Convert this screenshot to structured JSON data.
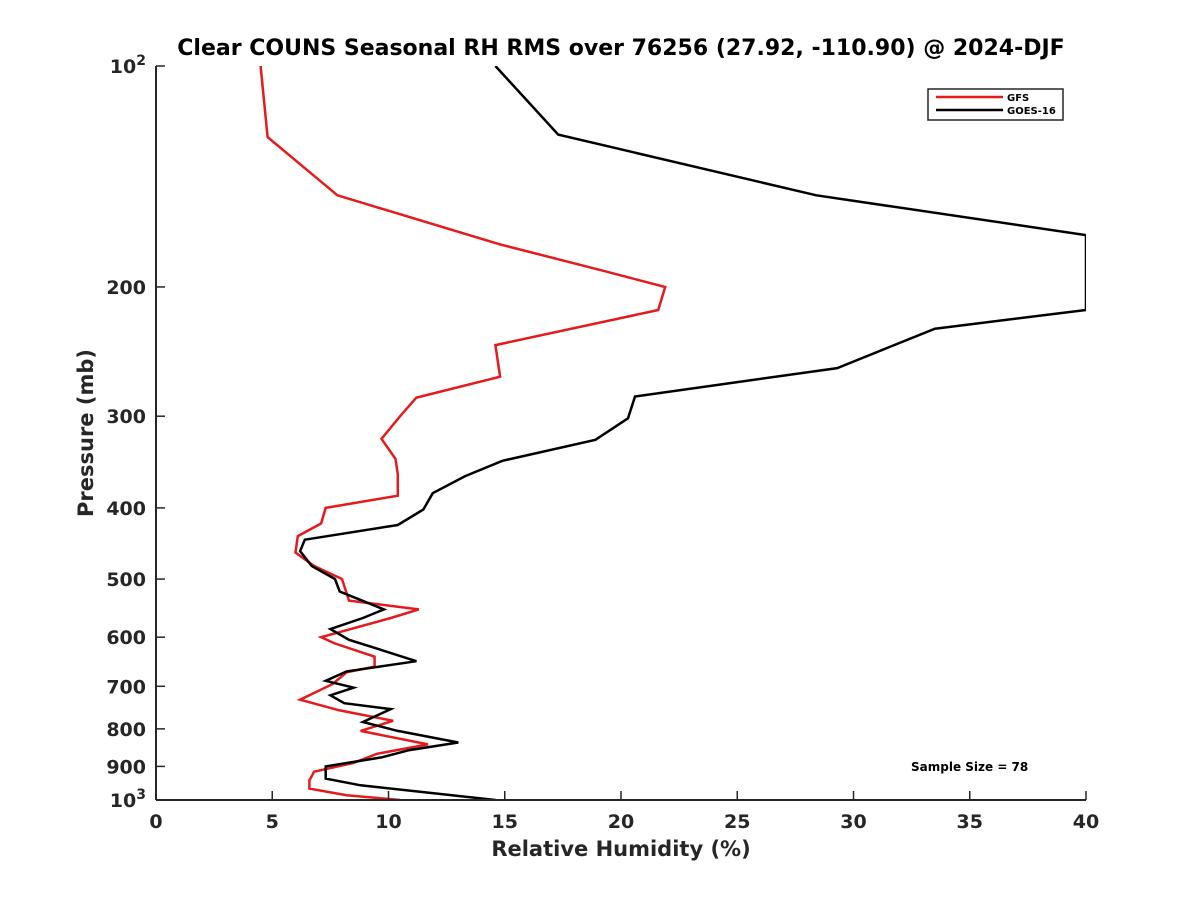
{
  "chart_data": {
    "type": "line",
    "title": "Clear COUNS Seasonal RH RMS over 76256 (27.92, -110.90) @ 2024-DJF",
    "xlabel": "Relative Humidity (%)",
    "ylabel": "Pressure (mb)",
    "xlim": [
      0,
      40
    ],
    "ylim": [
      100,
      1000
    ],
    "y_scale": "log",
    "y_reversed": true,
    "x_ticks": [
      "0",
      "5",
      "10",
      "15",
      "20",
      "25",
      "30",
      "35",
      "40"
    ],
    "y_ticks": [
      {
        "value": 100,
        "base": "10",
        "exp": "2"
      },
      {
        "value": 200,
        "label": "200"
      },
      {
        "value": 300,
        "label": "300"
      },
      {
        "value": 400,
        "label": "400"
      },
      {
        "value": 500,
        "label": "500"
      },
      {
        "value": 600,
        "label": "600"
      },
      {
        "value": 700,
        "label": "700"
      },
      {
        "value": 800,
        "label": "800"
      },
      {
        "value": 900,
        "label": "900"
      },
      {
        "value": 1000,
        "base": "10",
        "exp": "3"
      }
    ],
    "legend_position": "top-right",
    "annotation": "Sample Size = 78",
    "series": [
      {
        "name": "GFS",
        "color": "#e41a1c",
        "points": [
          [
            4.5,
            100
          ],
          [
            4.8,
            125
          ],
          [
            7.8,
            150
          ],
          [
            14.8,
            175
          ],
          [
            19.2,
            190
          ],
          [
            21.9,
            200
          ],
          [
            21.6,
            215
          ],
          [
            14.6,
            240
          ],
          [
            14.8,
            265
          ],
          [
            11.2,
            283
          ],
          [
            10.5,
            300
          ],
          [
            9.7,
            322
          ],
          [
            10.3,
            343
          ],
          [
            10.4,
            360
          ],
          [
            10.4,
            385
          ],
          [
            7.3,
            400
          ],
          [
            7.1,
            420
          ],
          [
            6.1,
            437
          ],
          [
            6.0,
            460
          ],
          [
            6.8,
            480
          ],
          [
            8.0,
            500
          ],
          [
            8.3,
            535
          ],
          [
            11.3,
            550
          ],
          [
            10.1,
            565
          ],
          [
            7.1,
            600
          ],
          [
            7.7,
            612
          ],
          [
            9.4,
            638
          ],
          [
            9.4,
            658
          ],
          [
            8.2,
            670
          ],
          [
            7.6,
            695
          ],
          [
            6.2,
            730
          ],
          [
            7.9,
            755
          ],
          [
            10.2,
            780
          ],
          [
            8.8,
            805
          ],
          [
            11.7,
            840
          ],
          [
            9.5,
            865
          ],
          [
            8.5,
            890
          ],
          [
            6.8,
            915
          ],
          [
            6.6,
            940
          ],
          [
            6.6,
            965
          ],
          [
            8.2,
            985
          ],
          [
            10.5,
            1000
          ]
        ]
      },
      {
        "name": "GOES-16",
        "color": "#000000",
        "points": [
          [
            14.6,
            100
          ],
          [
            17.3,
            124
          ],
          [
            28.4,
            150
          ],
          [
            40,
            170
          ],
          [
            40,
            215
          ],
          [
            33.5,
            228
          ],
          [
            29.3,
            258
          ],
          [
            20.6,
            282
          ],
          [
            20.3,
            302
          ],
          [
            18.9,
            323
          ],
          [
            14.9,
            345
          ],
          [
            13.3,
            362
          ],
          [
            11.9,
            382
          ],
          [
            11.5,
            402
          ],
          [
            10.4,
            422
          ],
          [
            6.4,
            442
          ],
          [
            6.2,
            458
          ],
          [
            6.7,
            480
          ],
          [
            7.7,
            500
          ],
          [
            7.9,
            520
          ],
          [
            9.8,
            550
          ],
          [
            8.9,
            565
          ],
          [
            7.5,
            585
          ],
          [
            8.3,
            605
          ],
          [
            9.5,
            622
          ],
          [
            11.2,
            647
          ],
          [
            8.2,
            668
          ],
          [
            7.3,
            688
          ],
          [
            8.5,
            703
          ],
          [
            7.5,
            720
          ],
          [
            8.1,
            738
          ],
          [
            10.1,
            752
          ],
          [
            8.9,
            783
          ],
          [
            10.4,
            805
          ],
          [
            13.0,
            835
          ],
          [
            10.9,
            855
          ],
          [
            9.7,
            875
          ],
          [
            7.3,
            900
          ],
          [
            7.3,
            935
          ],
          [
            8.8,
            955
          ],
          [
            14.6,
            1000
          ]
        ]
      }
    ]
  }
}
